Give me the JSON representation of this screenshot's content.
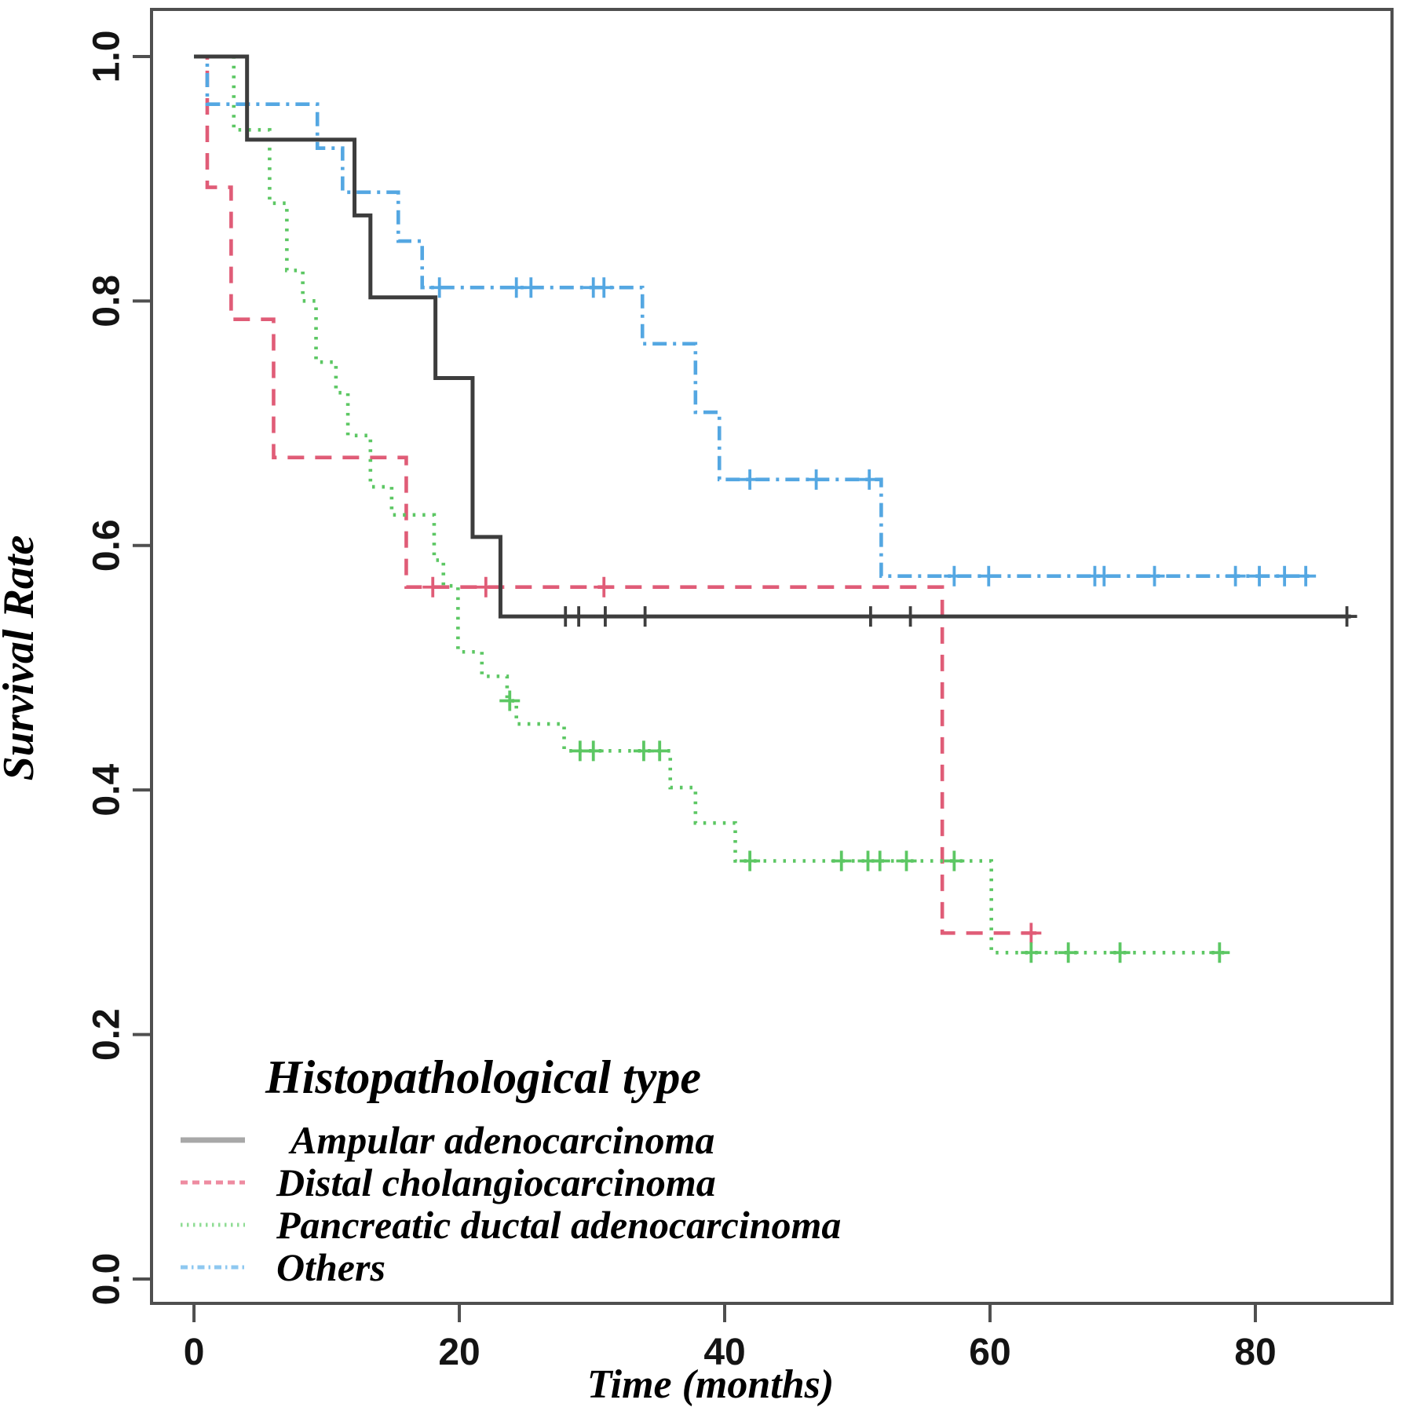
{
  "chart_data": {
    "type": "line",
    "chart_kind": "kaplan-meier-step",
    "title": "",
    "xlabel": "Time (months)",
    "ylabel": "Survival Rate",
    "xlim": [
      -3.2,
      90.3
    ],
    "ylim": [
      -0.0199,
      1.0385
    ],
    "grid": false,
    "axis_color": "#4f4f4f",
    "x_ticks": [
      {
        "value": 0,
        "label": "0"
      },
      {
        "value": 20,
        "label": "20"
      },
      {
        "value": 40,
        "label": "40"
      },
      {
        "value": 60,
        "label": "60"
      },
      {
        "value": 80,
        "label": "80"
      }
    ],
    "y_ticks": [
      {
        "value": 0.0,
        "label": "0.0"
      },
      {
        "value": 0.2,
        "label": "0.2"
      },
      {
        "value": 0.4,
        "label": "0.4"
      },
      {
        "value": 0.6,
        "label": "0.6"
      },
      {
        "value": 0.8,
        "label": "0.8"
      },
      {
        "value": 1.0,
        "label": "1.0"
      }
    ],
    "legend": {
      "title": "Histopathological type",
      "position": "inside-bottom-left"
    },
    "series": [
      {
        "name": "Ampular adenocarcinoma",
        "color": "#3d3d3d",
        "legend_color": "#a8a8a8",
        "dash": "solid",
        "steps": [
          [
            0,
            1.0
          ],
          [
            4,
            0.932
          ],
          [
            12.1,
            0.87
          ],
          [
            13.3,
            0.803
          ],
          [
            18.2,
            0.737
          ],
          [
            21,
            0.607
          ],
          [
            23.1,
            0.542
          ]
        ],
        "end_time": 87.2,
        "censors": [
          [
            28,
            0.542
          ],
          [
            29,
            0.542
          ],
          [
            31,
            0.542
          ],
          [
            34,
            0.542
          ],
          [
            51,
            0.542
          ],
          [
            54,
            0.542
          ],
          [
            86.9,
            0.542
          ]
        ]
      },
      {
        "name": "Distal cholangiocarcinoma",
        "color": "#e05c77",
        "legend_color": "#ee8ba0",
        "dash": "dashed",
        "steps": [
          [
            0,
            1.0
          ],
          [
            1,
            0.893
          ],
          [
            2.8,
            0.785
          ],
          [
            6,
            0.672
          ],
          [
            16,
            0.566
          ],
          [
            56.4,
            0.283
          ]
        ],
        "end_time": 63.5,
        "censors": [
          [
            18,
            0.566
          ],
          [
            22,
            0.566
          ],
          [
            30.9,
            0.566
          ],
          [
            63.1,
            0.283
          ]
        ]
      },
      {
        "name": "Pancreatic ductal adenocarcinoma",
        "color": "#5cc763",
        "legend_color": "#8fdc94",
        "dash": "dotted",
        "steps": [
          [
            0,
            1.0
          ],
          [
            3,
            0.94
          ],
          [
            5.7,
            0.88
          ],
          [
            7,
            0.825
          ],
          [
            8.2,
            0.8
          ],
          [
            9.2,
            0.75
          ],
          [
            10.7,
            0.725
          ],
          [
            11.6,
            0.69
          ],
          [
            13.3,
            0.648
          ],
          [
            14.9,
            0.625
          ],
          [
            18.1,
            0.588
          ],
          [
            18.8,
            0.567
          ],
          [
            19.9,
            0.513
          ],
          [
            21.7,
            0.493
          ],
          [
            23.6,
            0.473
          ],
          [
            24.3,
            0.454
          ],
          [
            27.9,
            0.432
          ],
          [
            35.9,
            0.402
          ],
          [
            37.8,
            0.373
          ],
          [
            40.8,
            0.342
          ],
          [
            60.1,
            0.267
          ]
        ],
        "end_time": 77.7,
        "censors": [
          [
            23.8,
            0.473
          ],
          [
            29.1,
            0.432
          ],
          [
            30.1,
            0.432
          ],
          [
            33.9,
            0.432
          ],
          [
            35.1,
            0.432
          ],
          [
            41.9,
            0.342
          ],
          [
            48.8,
            0.342
          ],
          [
            50.8,
            0.342
          ],
          [
            51.7,
            0.342
          ],
          [
            53.7,
            0.342
          ],
          [
            57.3,
            0.342
          ],
          [
            63.1,
            0.267
          ],
          [
            65.9,
            0.267
          ],
          [
            69.8,
            0.267
          ],
          [
            77.3,
            0.267
          ]
        ]
      },
      {
        "name": "Others",
        "color": "#54a7e2",
        "legend_color": "#8ec8f0",
        "dash": "dashdot",
        "steps": [
          [
            0,
            1.0
          ],
          [
            1,
            0.961
          ],
          [
            9.3,
            0.925
          ],
          [
            11.2,
            0.889
          ],
          [
            15.4,
            0.849
          ],
          [
            17.2,
            0.811
          ],
          [
            33.8,
            0.765
          ],
          [
            37.8,
            0.709
          ],
          [
            39.6,
            0.654
          ],
          [
            51.8,
            0.575
          ]
        ],
        "end_time": 84.2,
        "censors": [
          [
            18.5,
            0.811
          ],
          [
            24.3,
            0.811
          ],
          [
            25.4,
            0.811
          ],
          [
            30.1,
            0.811
          ],
          [
            30.9,
            0.811
          ],
          [
            41.9,
            0.654
          ],
          [
            46.9,
            0.654
          ],
          [
            50.9,
            0.654
          ],
          [
            57.3,
            0.575
          ],
          [
            59.9,
            0.575
          ],
          [
            67.9,
            0.575
          ],
          [
            68.6,
            0.575
          ],
          [
            72.4,
            0.575
          ],
          [
            78.5,
            0.575
          ],
          [
            80.3,
            0.575
          ],
          [
            82.2,
            0.575
          ],
          [
            83.8,
            0.575
          ]
        ]
      }
    ]
  }
}
